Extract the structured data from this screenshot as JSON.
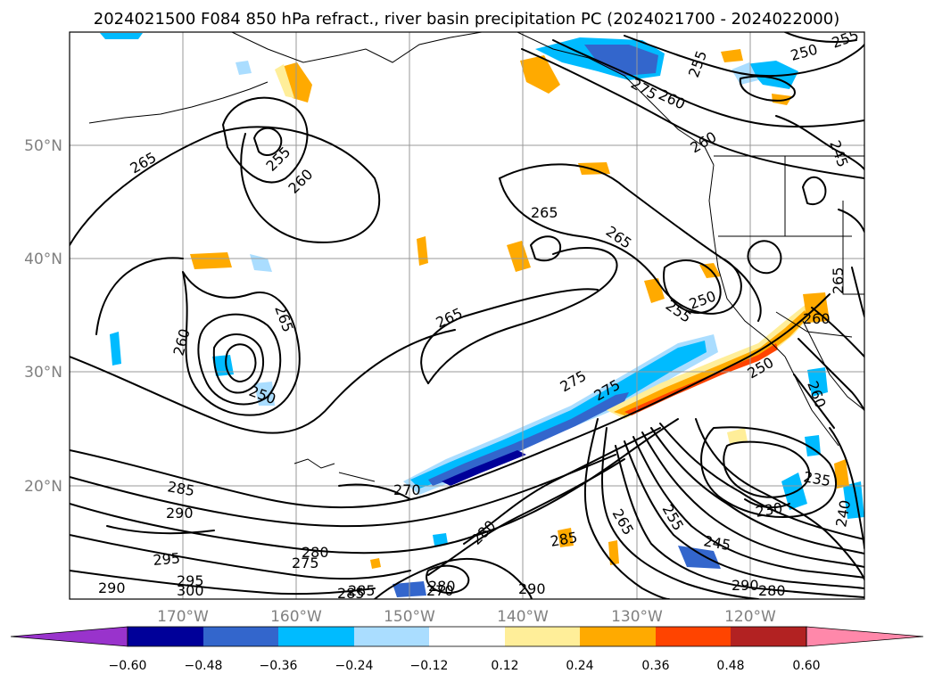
{
  "title": "2024021500 F084 850 hPa refract., river basin precipitation PC (2024021700 - 2024022000)",
  "map": {
    "lat_labels": [
      "50°N",
      "40°N",
      "30°N",
      "20°N"
    ],
    "lon_labels": [
      "170°W",
      "160°W",
      "150°W",
      "140°W",
      "130°W",
      "120°W"
    ],
    "extent": {
      "lon_min": -180,
      "lon_max": -110,
      "lat_min": 10,
      "lat_max": 60
    }
  },
  "contour_labels": [
    "255",
    "250",
    "245",
    "260",
    "255",
    "275",
    "260",
    "265",
    "265",
    "255",
    "260",
    "265",
    "265",
    "265",
    "260",
    "255",
    "250",
    "260",
    "265",
    "260",
    "275",
    "275",
    "250",
    "250",
    "285",
    "290",
    "280",
    "270",
    "295",
    "275",
    "280",
    "295",
    "300",
    "290",
    "285",
    "285",
    "270",
    "280",
    "290",
    "285",
    "265",
    "255",
    "245",
    "290",
    "280",
    "235",
    "230",
    "240"
  ],
  "colorbar": {
    "ticks": [
      "−0.60",
      "−0.48",
      "−0.36",
      "−0.24",
      "−0.12",
      "0.12",
      "0.24",
      "0.36",
      "0.48",
      "0.60"
    ],
    "colors": [
      "#9933cc",
      "#000099",
      "#3366cc",
      "#00bbff",
      "#aaddff",
      "#ffffff",
      "#ffee99",
      "#ffaa00",
      "#ff4400",
      "#b22222",
      "#ff88aa"
    ]
  }
}
